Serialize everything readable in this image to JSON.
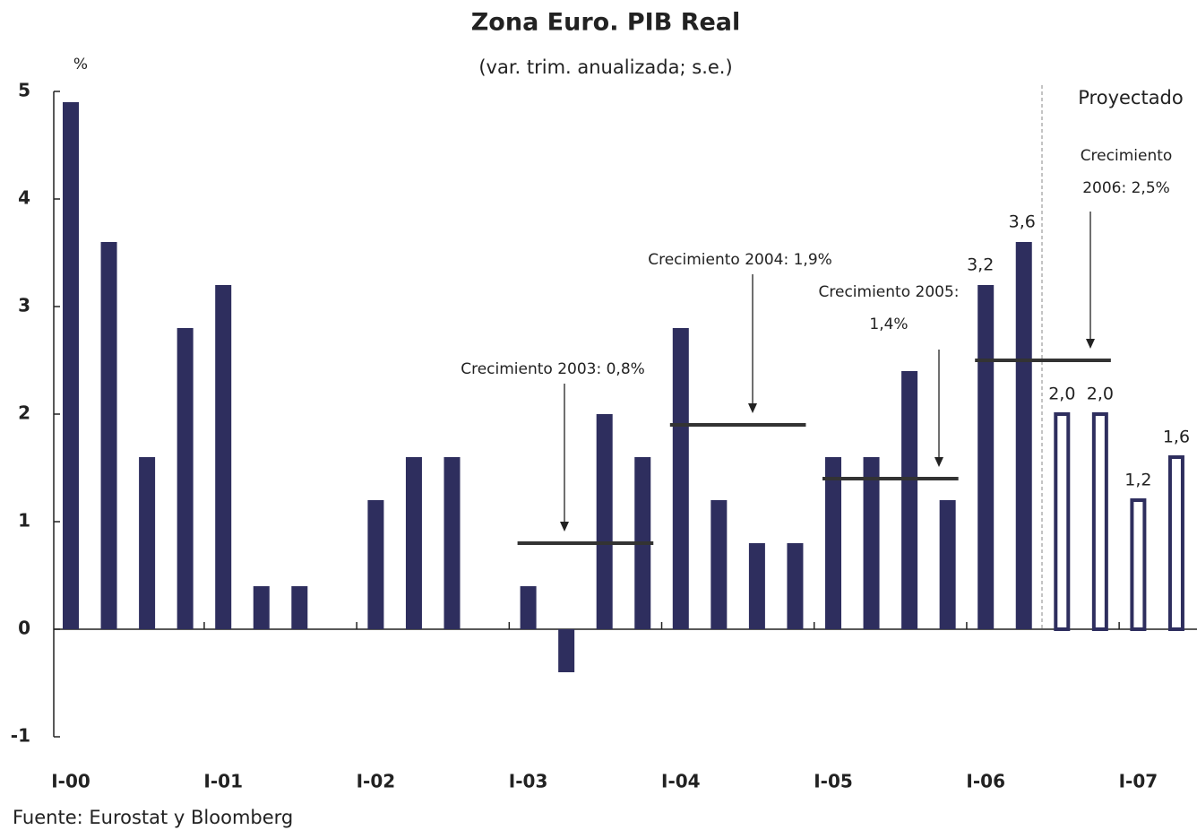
{
  "chart_data": {
    "type": "bar",
    "title": "Zona Euro. PIB Real",
    "subtitle": "(var. trim. anualizada; s.e.)",
    "y_label": "%",
    "projection_label": "Proyectado",
    "source": "Fuente: Eurostat y Bloomberg",
    "categories": [
      "I-00",
      null,
      null,
      null,
      "I-01",
      null,
      null,
      null,
      "I-02",
      null,
      null,
      null,
      "I-03",
      null,
      null,
      null,
      "I-04",
      null,
      null,
      null,
      "I-05",
      null,
      null,
      null,
      "I-06",
      null,
      null,
      null,
      "I-07",
      null
    ],
    "series": [
      {
        "color": "#2e2e5e",
        "fill": "solid",
        "values": [
          4.9,
          3.6,
          1.6,
          2.8,
          3.2,
          0.4,
          0.4,
          0,
          1.2,
          1.6,
          1.6,
          0,
          0.4,
          -0.4,
          2.0,
          1.6,
          2.8,
          1.2,
          0.8,
          0.8,
          1.6,
          1.6,
          2.4,
          1.2,
          3.2,
          3.6,
          null,
          null,
          null,
          null
        ],
        "value_labels": [
          null,
          null,
          null,
          null,
          null,
          null,
          null,
          null,
          null,
          null,
          null,
          null,
          null,
          null,
          null,
          null,
          null,
          null,
          null,
          null,
          null,
          null,
          null,
          null,
          "3,2",
          "3,6",
          null,
          null,
          null,
          null
        ]
      },
      {
        "color": "#2e2e5e",
        "fill": "none",
        "values": [
          null,
          null,
          null,
          null,
          null,
          null,
          null,
          null,
          null,
          null,
          null,
          null,
          null,
          null,
          null,
          null,
          null,
          null,
          null,
          null,
          null,
          null,
          null,
          null,
          null,
          null,
          2.0,
          2.0,
          1.2,
          1.6
        ],
        "value_labels": [
          null,
          null,
          null,
          null,
          null,
          null,
          null,
          null,
          null,
          null,
          null,
          null,
          null,
          null,
          null,
          null,
          null,
          null,
          null,
          null,
          null,
          null,
          null,
          null,
          null,
          null,
          "2,0",
          "2,0",
          "1,2",
          "1,6"
        ]
      }
    ],
    "ylim": [
      -1,
      5
    ],
    "yticks": [
      -1,
      0,
      1,
      2,
      3,
      4,
      5
    ],
    "annotations": [
      {
        "text": [
          "Crecimiento 2003: 0,8%"
        ],
        "value": 0.8,
        "from": 12,
        "to": 15
      },
      {
        "text": [
          "Crecimiento 2004: 1,9%"
        ],
        "value": 1.9,
        "from": 16,
        "to": 19
      },
      {
        "text": [
          "Crecimiento 2005:",
          "1,4%"
        ],
        "value": 1.4,
        "from": 20,
        "to": 23
      },
      {
        "text": [
          "Crecimiento",
          "2006: 2,5%"
        ],
        "value": 2.5,
        "from": 24,
        "to": 27
      }
    ]
  }
}
